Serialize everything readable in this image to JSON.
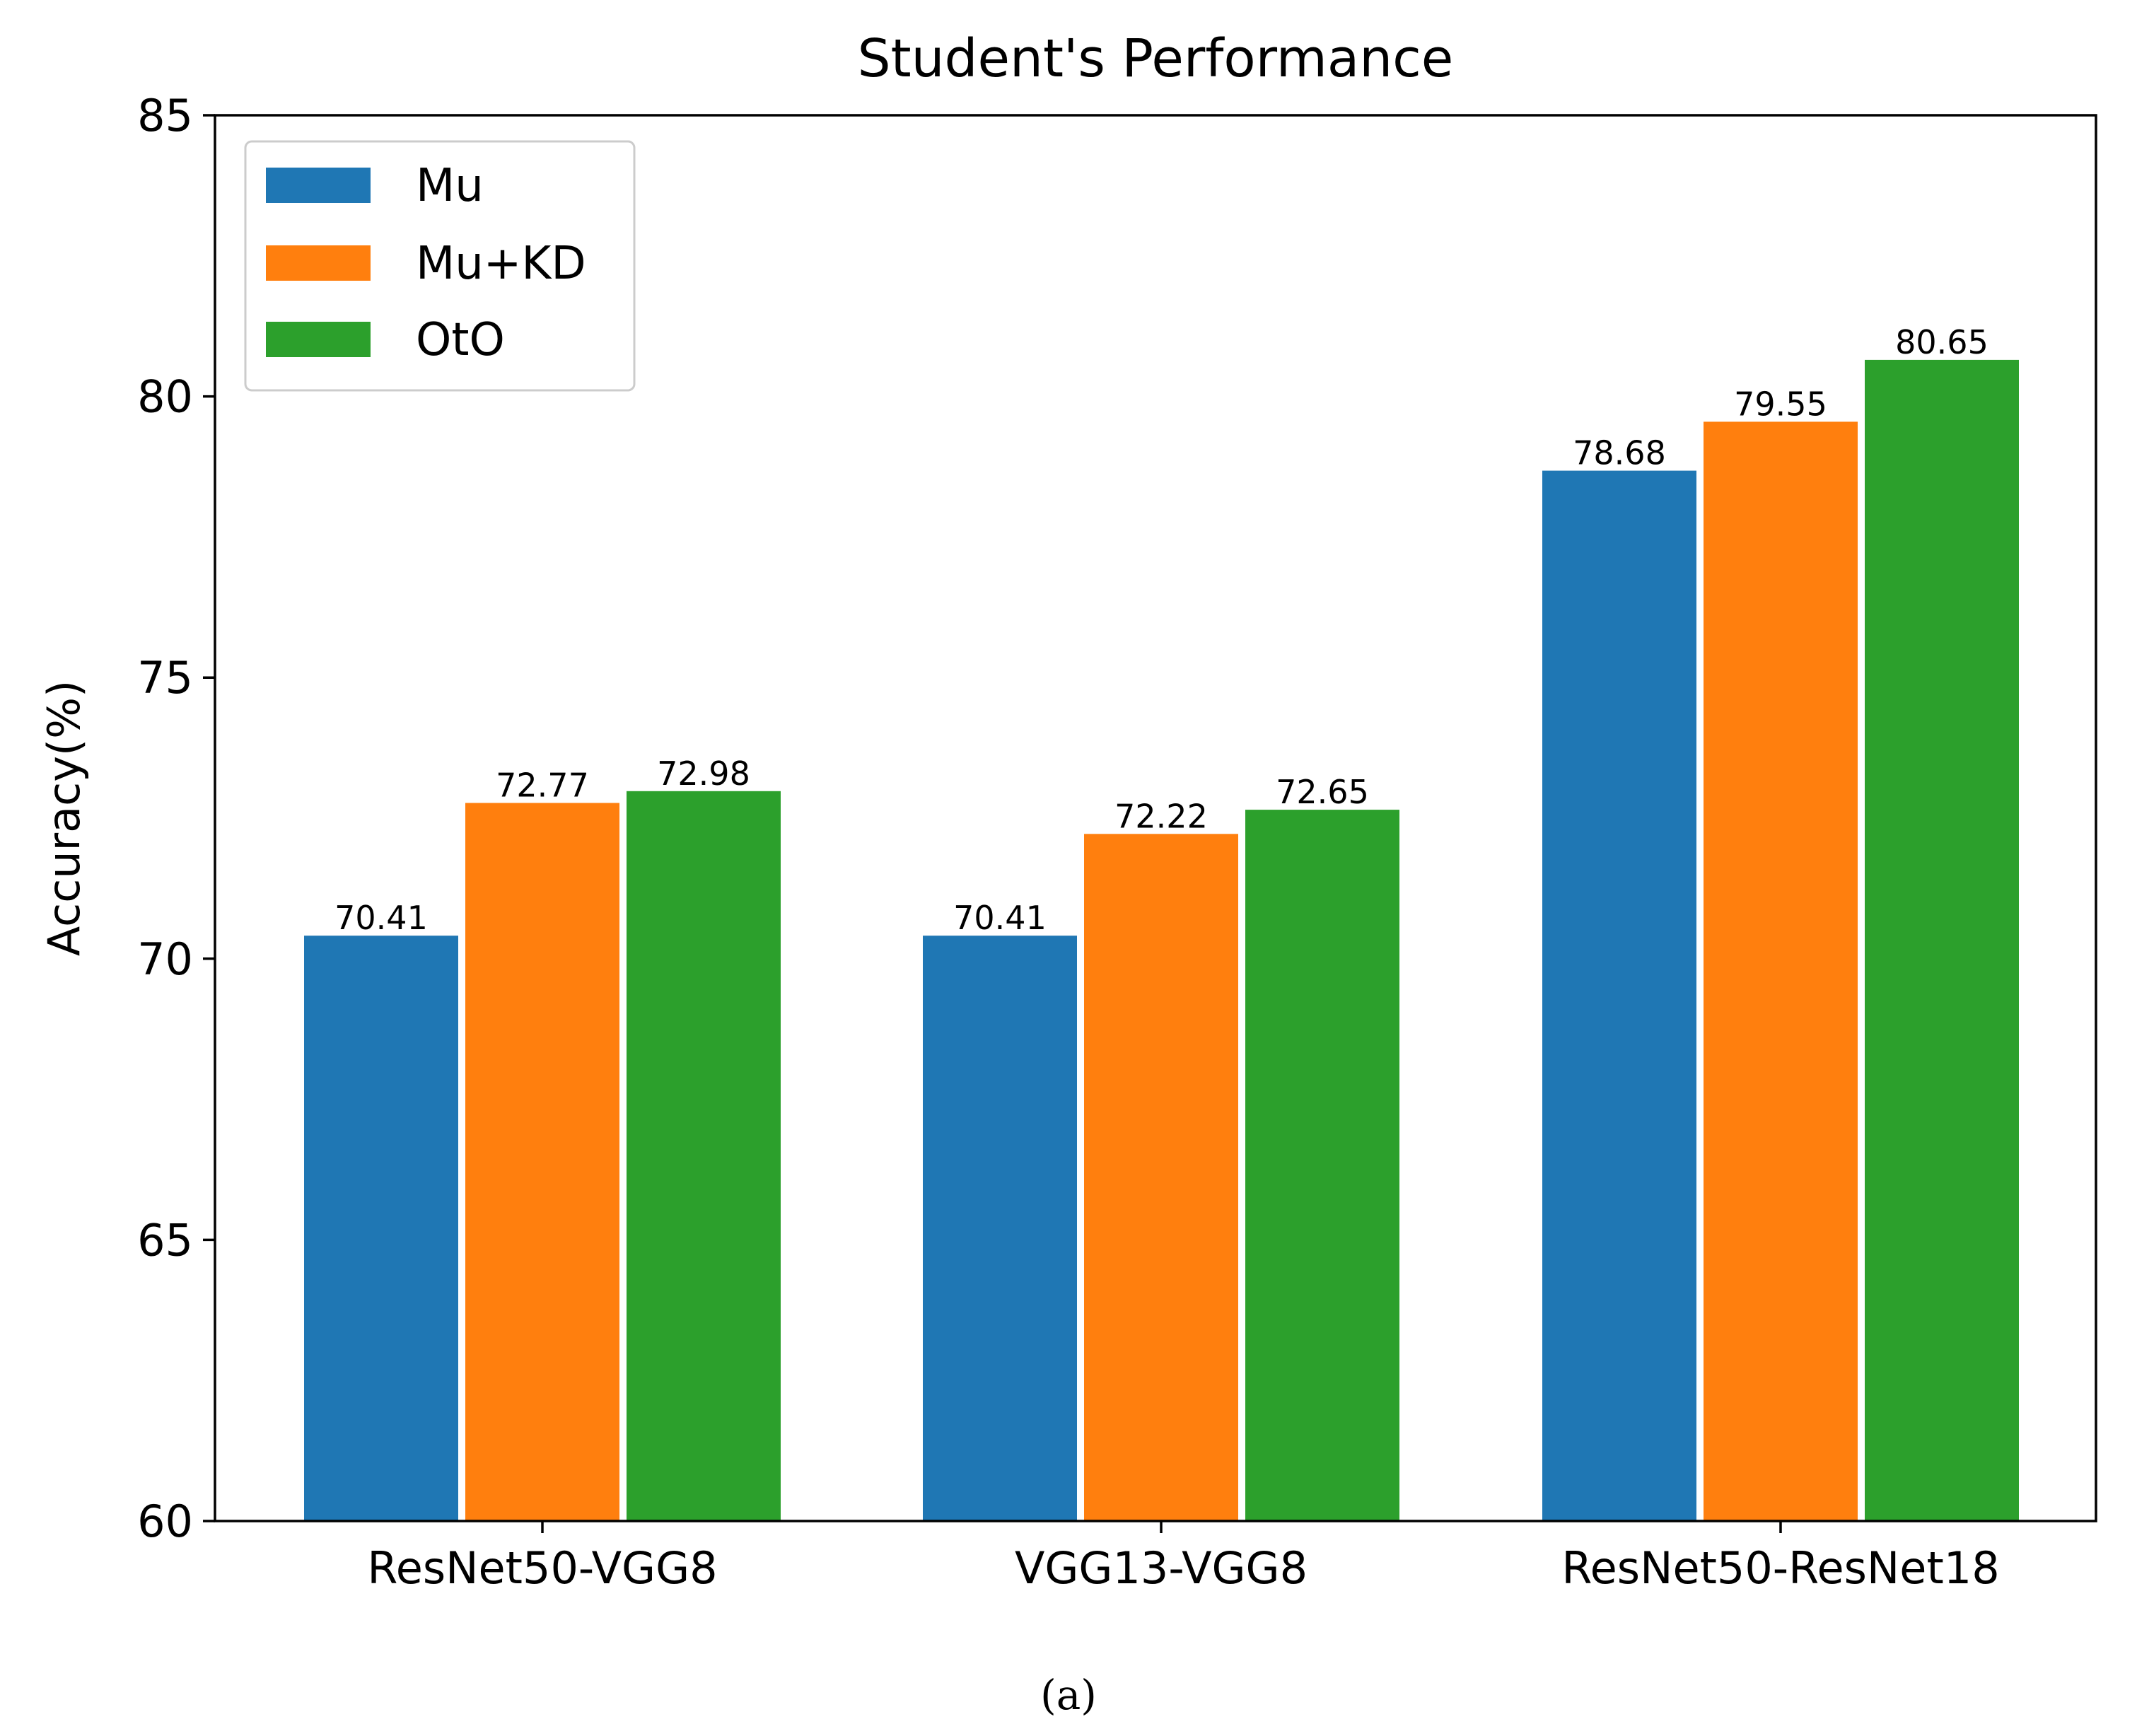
{
  "chart_data": {
    "type": "bar",
    "title": "Student's Performance",
    "xlabel": "",
    "ylabel": "Accuracy(%)",
    "ylim": [
      60,
      85
    ],
    "yticks": [
      "60",
      "65",
      "70",
      "75",
      "80",
      "85"
    ],
    "categories": [
      "ResNet50-VGG8",
      "VGG13-VGG8",
      "ResNet50-ResNet18"
    ],
    "series": [
      {
        "name": "Mu",
        "color": "#1f77b4",
        "values": [
          70.41,
          70.41,
          78.68
        ],
        "labels": [
          "70.41",
          "70.41",
          "78.68"
        ]
      },
      {
        "name": "Mu+KD",
        "color": "#ff7f0e",
        "values": [
          72.77,
          72.22,
          79.55
        ],
        "labels": [
          "72.77",
          "72.22",
          "79.55"
        ]
      },
      {
        "name": "OtO",
        "color": "#2ca02c",
        "values": [
          72.98,
          72.65,
          80.65
        ],
        "labels": [
          "72.98",
          "72.65",
          "80.65"
        ]
      }
    ],
    "legend_position": "top-left",
    "grid": false
  },
  "caption": "(a)"
}
